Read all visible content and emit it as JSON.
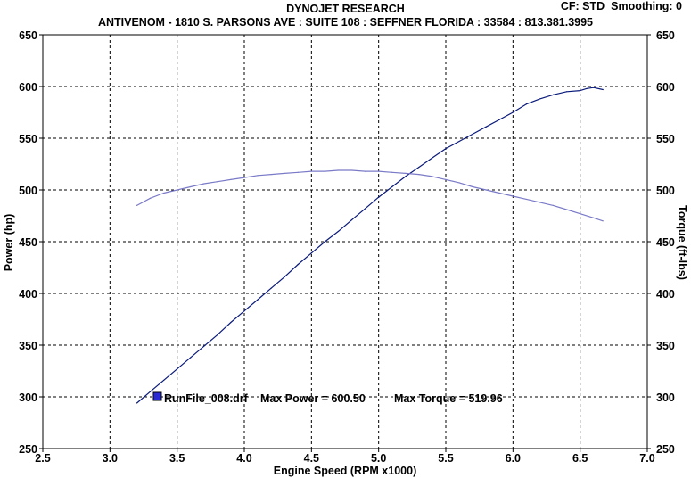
{
  "header": {
    "title": "DYNOJET RESEARCH",
    "address": "ANTIVENOM - 1810 S. PARSONS AVE : SUITE 108 : SEFFNER FLORIDA : 33584 : 813.381.3995",
    "cf_label": "CF: STD",
    "smoothing_label": "Smoothing: 0"
  },
  "legend": {
    "run_file": "RunFile_008.drf",
    "max_power_label": "Max Power = 600.50",
    "max_torque_label": "Max Torque = 519.96",
    "swatch_color": "#2b2bd6"
  },
  "colors": {
    "power_line": "#0a1a7a",
    "torque_line": "#7a7ac8",
    "grid": "#000000"
  },
  "chart_data": {
    "type": "line",
    "xlabel": "Engine Speed (RPM x1000)",
    "ylabel_left": "Power (hp)",
    "ylabel_right": "Torque (ft-lbs)",
    "xlim": [
      2.5,
      7.0
    ],
    "ylim": [
      250,
      650
    ],
    "xticks": [
      "2.5",
      "3.0",
      "3.5",
      "4.0",
      "4.5",
      "5.0",
      "5.5",
      "6.0",
      "6.5",
      "7.0"
    ],
    "yticks": [
      "250",
      "300",
      "350",
      "400",
      "450",
      "500",
      "550",
      "600",
      "650"
    ],
    "grid": true,
    "series": [
      {
        "key": "power",
        "x": [
          3.2,
          3.3,
          3.4,
          3.5,
          3.6,
          3.7,
          3.8,
          3.9,
          4.0,
          4.1,
          4.2,
          4.3,
          4.4,
          4.5,
          4.6,
          4.7,
          4.8,
          4.9,
          5.0,
          5.1,
          5.2,
          5.3,
          5.4,
          5.5,
          5.6,
          5.7,
          5.8,
          5.9,
          6.0,
          6.1,
          6.2,
          6.3,
          6.4,
          6.5,
          6.55,
          6.6,
          6.67
        ],
        "values": [
          294,
          305,
          316,
          327,
          338,
          349,
          360,
          372,
          383,
          394,
          405,
          416,
          428,
          439,
          450,
          460,
          471,
          482,
          493,
          503,
          513,
          522,
          531,
          540,
          547,
          554,
          561,
          568,
          575,
          583,
          588,
          592,
          595,
          596,
          598,
          599,
          597
        ]
      },
      {
        "key": "torque",
        "x": [
          3.2,
          3.3,
          3.4,
          3.5,
          3.6,
          3.7,
          3.8,
          3.9,
          4.0,
          4.1,
          4.2,
          4.3,
          4.4,
          4.5,
          4.6,
          4.7,
          4.8,
          4.9,
          5.0,
          5.1,
          5.2,
          5.3,
          5.4,
          5.5,
          5.6,
          5.7,
          5.8,
          5.9,
          6.0,
          6.1,
          6.2,
          6.3,
          6.4,
          6.5,
          6.6,
          6.67
        ],
        "values": [
          485,
          492,
          497,
          500,
          503,
          506,
          508,
          510,
          512,
          514,
          515,
          516,
          517,
          518,
          518,
          519,
          519,
          518,
          518,
          517,
          516,
          515,
          513,
          510,
          507,
          503,
          500,
          497,
          494,
          491,
          488,
          485,
          481,
          477,
          473,
          470
        ]
      }
    ]
  }
}
